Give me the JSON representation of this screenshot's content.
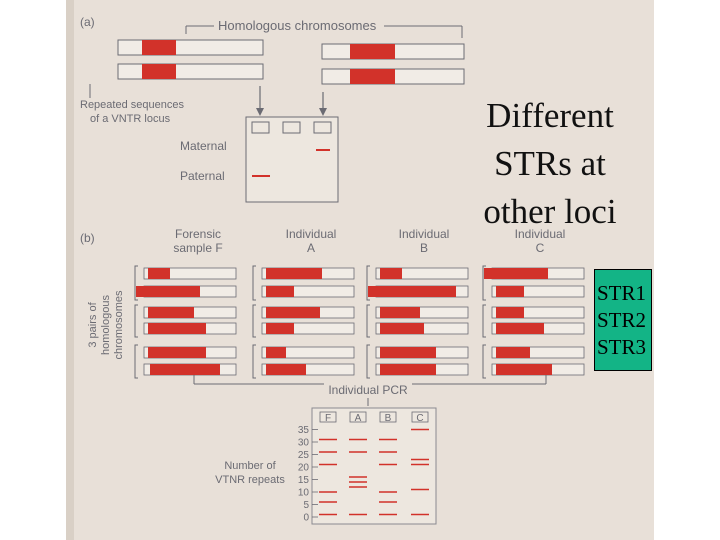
{
  "colors": {
    "page_background": "#ffffff",
    "photo_background": "#e8e0d8",
    "band_red": "#d2322a",
    "ink": "#6b6b73",
    "str_box_fill": "#13b486"
  },
  "part_a": {
    "label": "(a)",
    "top_label": "Homologous chromosomes",
    "repeat_label_line1": "Repeated sequences",
    "repeat_label_line2": "of a VNTR locus",
    "maternal_label": "Maternal",
    "paternal_label": "Paternal"
  },
  "part_b": {
    "label": "(b)",
    "columns": [
      {
        "line1": "Forensic",
        "line2": "sample F"
      },
      {
        "line1": "Individual",
        "line2": "A"
      },
      {
        "line1": "Individual",
        "line2": "B"
      },
      {
        "line1": "Individual",
        "line2": "C"
      }
    ],
    "side_label_line1": "3 pairs of",
    "side_label_line2": "homologous",
    "side_label_line3": "chromosomes",
    "pcr_label": "Individual PCR"
  },
  "gel": {
    "lane_labels": [
      "F",
      "A",
      "B",
      "C"
    ],
    "ticks": [
      "35",
      "30",
      "25",
      "20",
      "15",
      "10",
      "5",
      "0"
    ],
    "axis_label_line1": "Number of",
    "axis_label_line2": "VTNR repeats"
  },
  "overlay": {
    "title_lines": [
      "Different",
      "STRs at",
      "other loci"
    ],
    "str_labels": [
      "STR1",
      "STR2",
      "STR3"
    ]
  }
}
